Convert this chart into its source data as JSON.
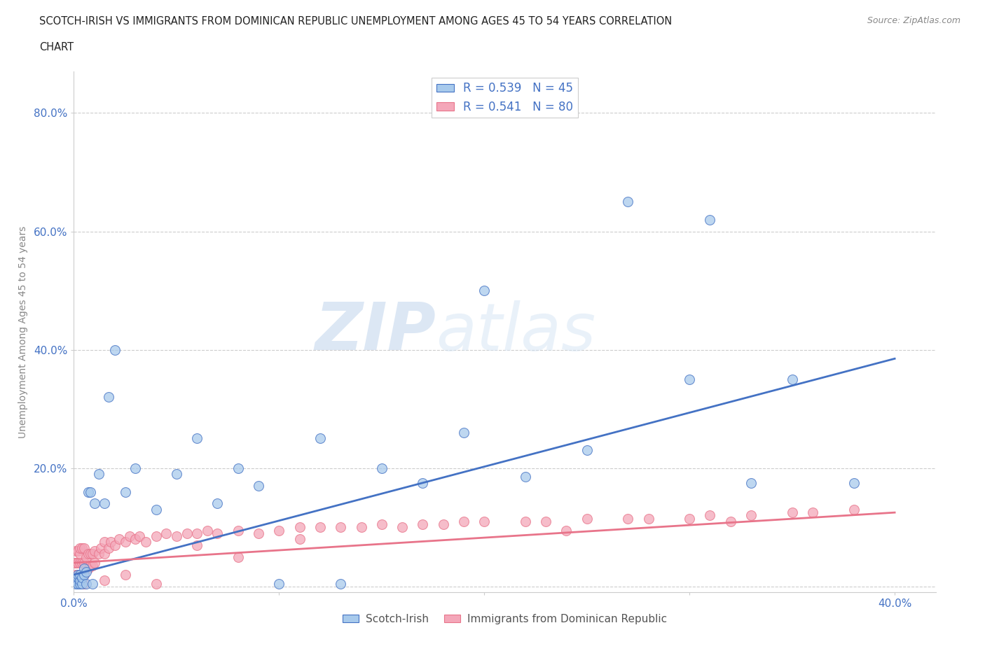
{
  "title_line1": "SCOTCH-IRISH VS IMMIGRANTS FROM DOMINICAN REPUBLIC UNEMPLOYMENT AMONG AGES 45 TO 54 YEARS CORRELATION",
  "title_line2": "CHART",
  "source": "Source: ZipAtlas.com",
  "ylabel": "Unemployment Among Ages 45 to 54 years",
  "xlim": [
    0.0,
    0.42
  ],
  "ylim": [
    -0.01,
    0.87
  ],
  "xticks": [
    0.0,
    0.1,
    0.2,
    0.3,
    0.4
  ],
  "yticks": [
    0.0,
    0.2,
    0.4,
    0.6,
    0.8
  ],
  "xticklabels": [
    "0.0%",
    "",
    "",
    "",
    "40.0%"
  ],
  "yticklabels": [
    "",
    "20.0%",
    "40.0%",
    "60.0%",
    "80.0%"
  ],
  "scotch_irish_R": 0.539,
  "scotch_irish_N": 45,
  "dominican_R": 0.541,
  "dominican_N": 80,
  "scotch_irish_color": "#a8caec",
  "dominican_color": "#f4a7b9",
  "scotch_irish_line_color": "#4472c4",
  "dominican_line_color": "#e8748a",
  "watermark_zip": "ZIP",
  "watermark_atlas": "atlas",
  "scotch_irish_x": [
    0.001,
    0.001,
    0.002,
    0.002,
    0.002,
    0.003,
    0.003,
    0.003,
    0.004,
    0.004,
    0.005,
    0.005,
    0.006,
    0.006,
    0.007,
    0.008,
    0.009,
    0.01,
    0.012,
    0.015,
    0.017,
    0.02,
    0.025,
    0.03,
    0.04,
    0.05,
    0.06,
    0.07,
    0.08,
    0.09,
    0.1,
    0.12,
    0.13,
    0.15,
    0.17,
    0.19,
    0.2,
    0.22,
    0.25,
    0.27,
    0.3,
    0.31,
    0.33,
    0.35,
    0.38
  ],
  "scotch_irish_y": [
    0.005,
    0.01,
    0.005,
    0.015,
    0.02,
    0.005,
    0.01,
    0.02,
    0.005,
    0.015,
    0.02,
    0.03,
    0.005,
    0.025,
    0.16,
    0.16,
    0.005,
    0.14,
    0.19,
    0.14,
    0.32,
    0.4,
    0.16,
    0.2,
    0.13,
    0.19,
    0.25,
    0.14,
    0.2,
    0.17,
    0.005,
    0.25,
    0.005,
    0.2,
    0.175,
    0.26,
    0.5,
    0.185,
    0.23,
    0.65,
    0.35,
    0.62,
    0.175,
    0.35,
    0.175
  ],
  "dominican_x": [
    0.0005,
    0.001,
    0.001,
    0.001,
    0.002,
    0.002,
    0.002,
    0.003,
    0.003,
    0.003,
    0.003,
    0.004,
    0.004,
    0.004,
    0.005,
    0.005,
    0.005,
    0.006,
    0.006,
    0.007,
    0.007,
    0.008,
    0.008,
    0.009,
    0.009,
    0.01,
    0.01,
    0.012,
    0.013,
    0.015,
    0.015,
    0.017,
    0.018,
    0.02,
    0.022,
    0.025,
    0.027,
    0.03,
    0.032,
    0.035,
    0.04,
    0.045,
    0.05,
    0.055,
    0.06,
    0.065,
    0.07,
    0.08,
    0.09,
    0.1,
    0.11,
    0.12,
    0.13,
    0.14,
    0.15,
    0.17,
    0.18,
    0.19,
    0.2,
    0.22,
    0.23,
    0.25,
    0.27,
    0.28,
    0.3,
    0.31,
    0.33,
    0.35,
    0.36,
    0.38,
    0.005,
    0.015,
    0.025,
    0.04,
    0.06,
    0.08,
    0.11,
    0.16,
    0.24,
    0.32
  ],
  "dominican_y": [
    0.04,
    0.02,
    0.04,
    0.06,
    0.02,
    0.04,
    0.06,
    0.02,
    0.04,
    0.055,
    0.065,
    0.02,
    0.04,
    0.065,
    0.02,
    0.04,
    0.065,
    0.03,
    0.05,
    0.03,
    0.055,
    0.035,
    0.055,
    0.035,
    0.055,
    0.04,
    0.06,
    0.055,
    0.065,
    0.055,
    0.075,
    0.065,
    0.075,
    0.07,
    0.08,
    0.075,
    0.085,
    0.08,
    0.085,
    0.075,
    0.085,
    0.09,
    0.085,
    0.09,
    0.09,
    0.095,
    0.09,
    0.095,
    0.09,
    0.095,
    0.1,
    0.1,
    0.1,
    0.1,
    0.105,
    0.105,
    0.105,
    0.11,
    0.11,
    0.11,
    0.11,
    0.115,
    0.115,
    0.115,
    0.115,
    0.12,
    0.12,
    0.125,
    0.125,
    0.13,
    0.005,
    0.01,
    0.02,
    0.005,
    0.07,
    0.05,
    0.08,
    0.1,
    0.095,
    0.11
  ],
  "si_trend_x": [
    0.0,
    0.4
  ],
  "si_trend_y": [
    0.02,
    0.385
  ],
  "dom_trend_x": [
    0.0,
    0.4
  ],
  "dom_trend_y": [
    0.04,
    0.125
  ]
}
